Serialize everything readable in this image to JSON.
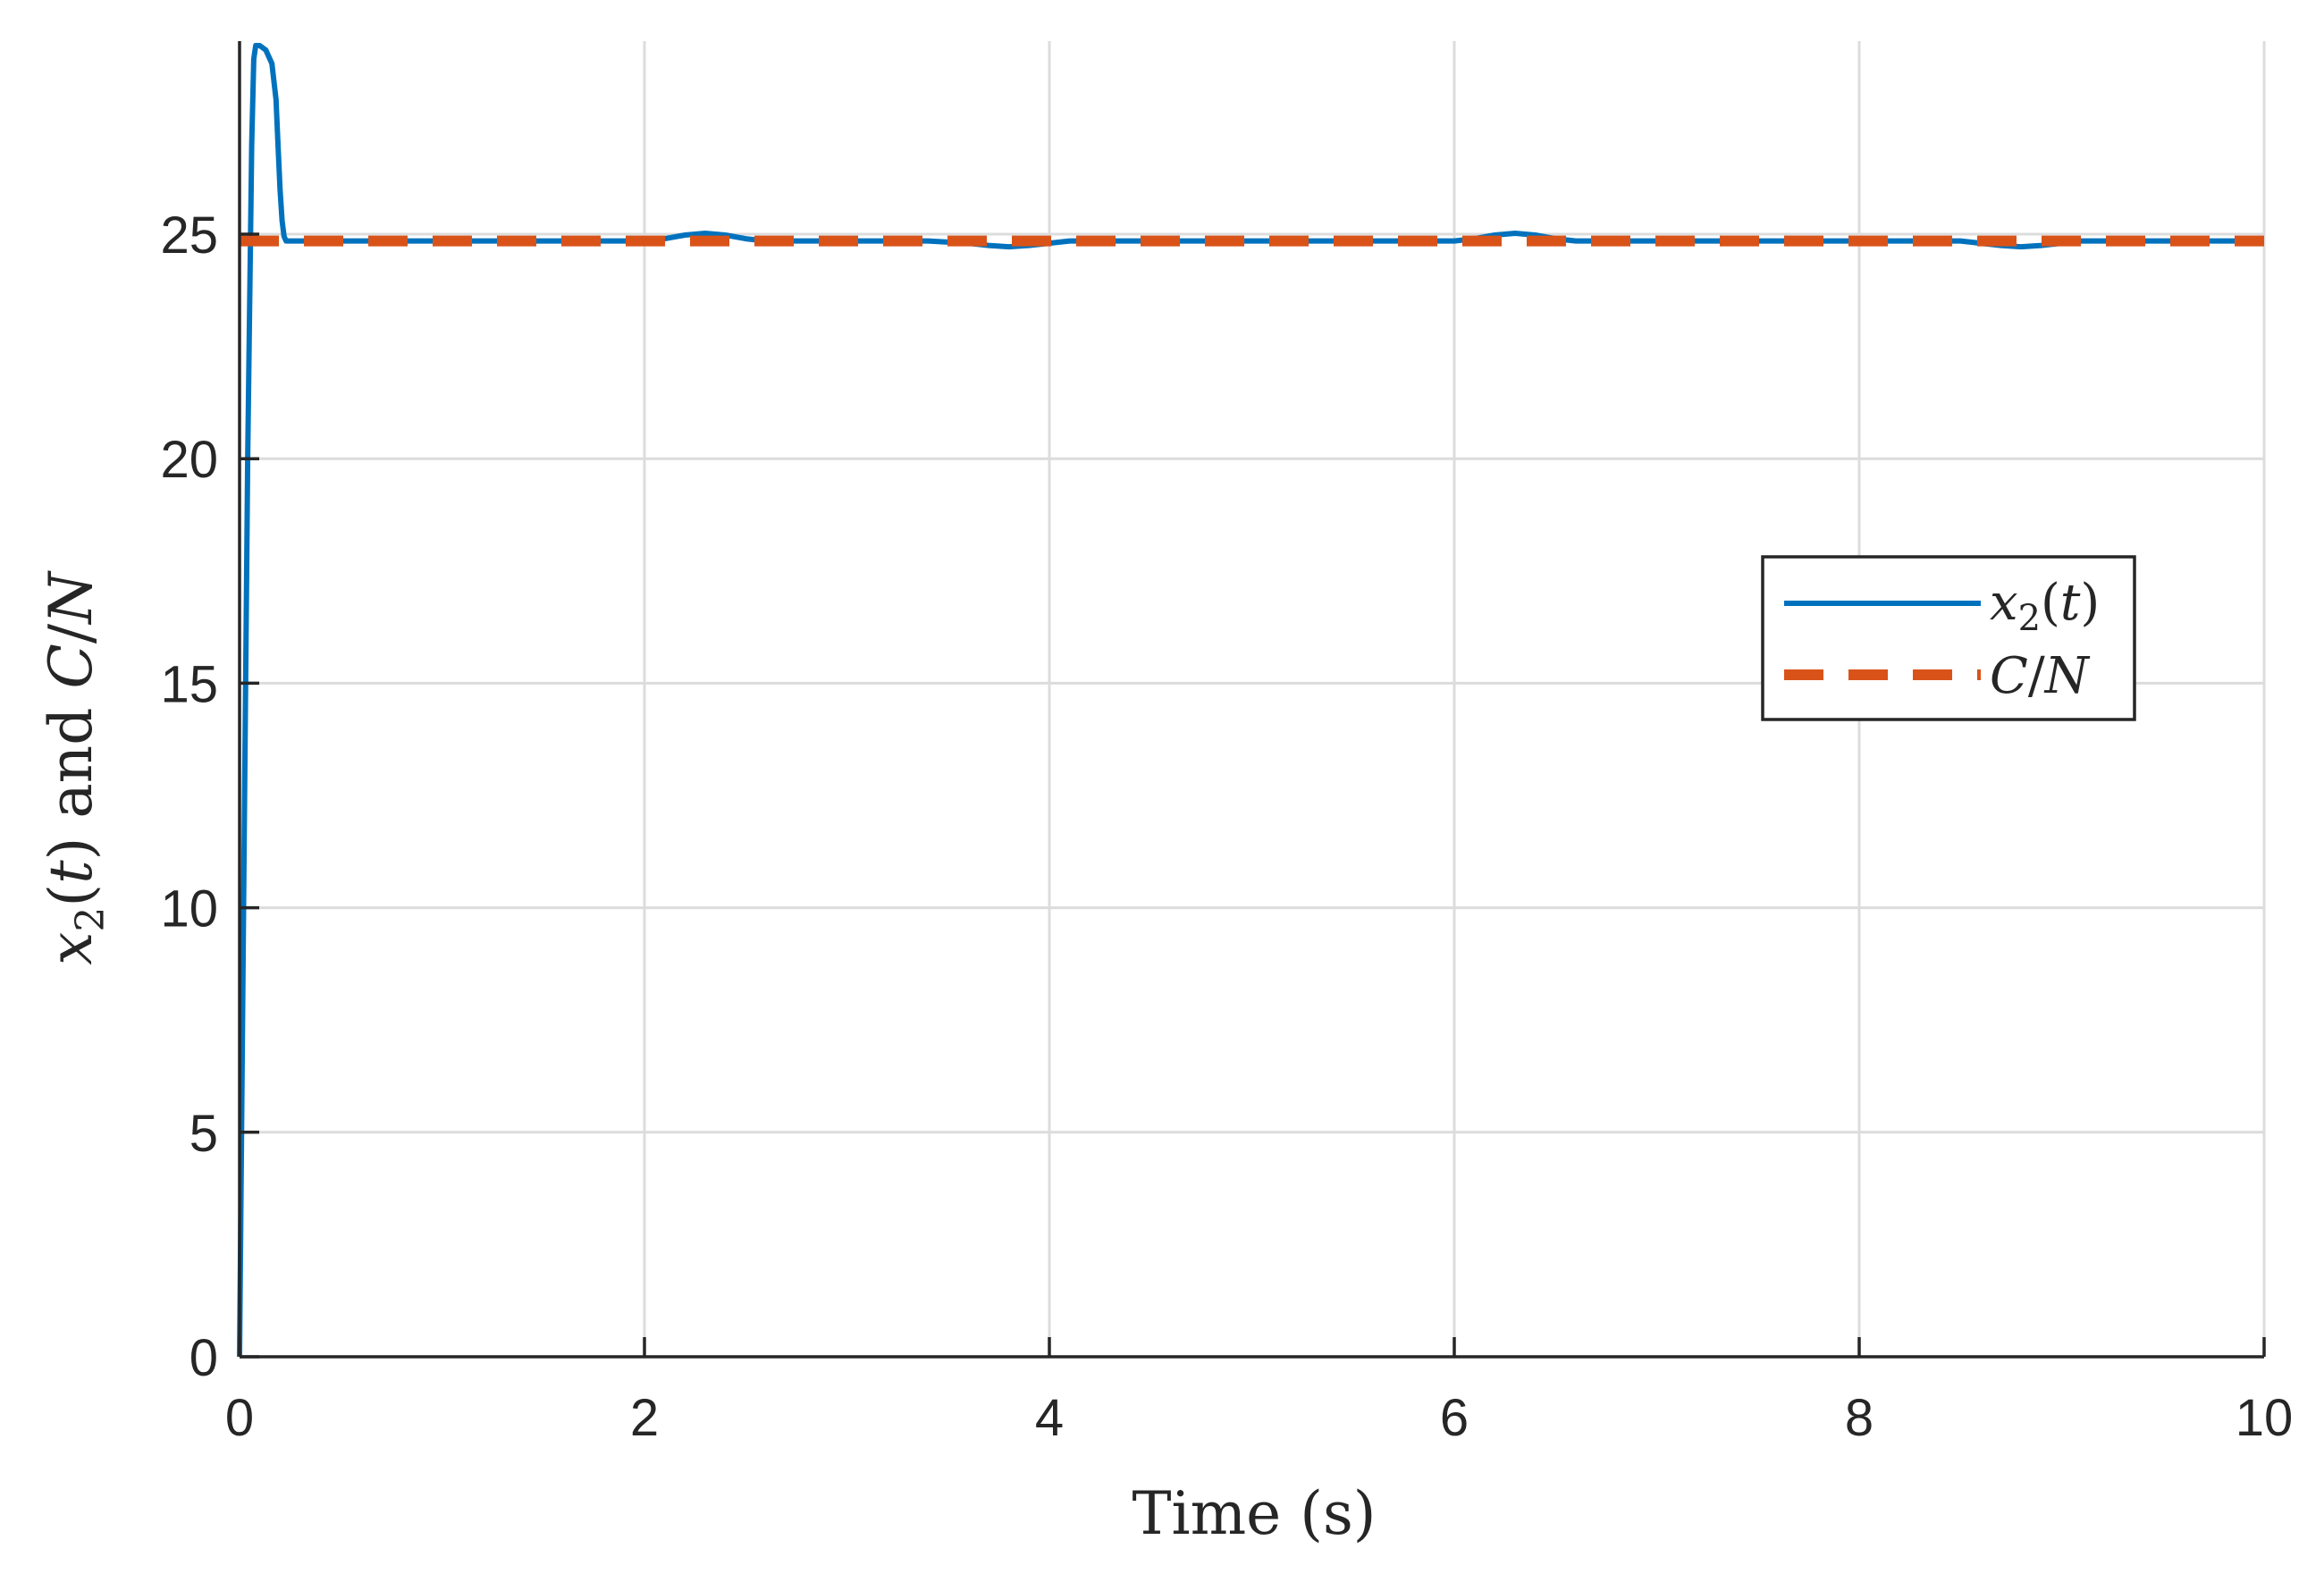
{
  "chart_data": {
    "type": "line",
    "title": "",
    "xlabel": "Time (s)",
    "ylabel": "x2(t) and C/N",
    "xlim": [
      0,
      10
    ],
    "ylim": [
      0,
      29.3
    ],
    "xticks": [
      0,
      2,
      4,
      6,
      8,
      10
    ],
    "yticks": [
      0,
      5,
      10,
      15,
      20,
      25
    ],
    "xtick_labels": [
      "0",
      "2",
      "4",
      "6",
      "8",
      "10"
    ],
    "ytick_labels": [
      "0",
      "5",
      "10",
      "15",
      "20",
      "25"
    ],
    "grid": true,
    "legend_position": "center-right",
    "series": [
      {
        "name": "x2(t)",
        "style": "solid",
        "color": "#0072BD",
        "x": [
          0,
          0.02,
          0.04,
          0.06,
          0.07,
          0.08,
          0.1,
          0.13,
          0.16,
          0.18,
          0.19,
          0.2,
          0.21,
          0.22,
          0.23,
          0.25,
          0.3,
          0.5,
          1.0,
          1.5,
          2.0,
          2.1,
          2.2,
          2.3,
          2.4,
          2.5,
          2.6,
          3.0,
          3.4,
          3.6,
          3.7,
          3.8,
          3.9,
          4.0,
          4.1,
          4.3,
          5.0,
          5.5,
          6.0,
          6.1,
          6.2,
          6.3,
          6.4,
          6.5,
          6.6,
          7.0,
          7.5,
          8.0,
          8.5,
          8.6,
          8.7,
          8.8,
          8.9,
          9.0,
          9.1,
          9.3,
          10.0
        ],
        "y": [
          0,
          10,
          20,
          27,
          28.9,
          29.2,
          29.2,
          29.1,
          28.8,
          28.0,
          27.0,
          26.0,
          25.3,
          24.95,
          24.85,
          24.85,
          24.85,
          24.85,
          24.85,
          24.85,
          24.85,
          24.9,
          24.98,
          25.02,
          24.98,
          24.9,
          24.85,
          24.85,
          24.85,
          24.8,
          24.75,
          24.72,
          24.75,
          24.8,
          24.85,
          24.85,
          24.85,
          24.85,
          24.85,
          24.9,
          24.98,
          25.02,
          24.98,
          24.9,
          24.85,
          24.85,
          24.85,
          24.85,
          24.85,
          24.8,
          24.75,
          24.72,
          24.75,
          24.8,
          24.85,
          24.85,
          24.85
        ]
      },
      {
        "name": "C/N",
        "style": "dashed",
        "color": "#D95319",
        "x": [
          0,
          10
        ],
        "y": [
          24.85,
          24.85
        ]
      }
    ]
  },
  "legend": {
    "entries": [
      "x2(t)",
      "C/N"
    ]
  }
}
